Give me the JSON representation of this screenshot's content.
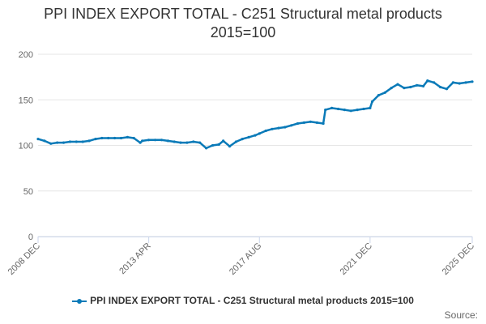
{
  "chart_data": {
    "type": "line",
    "title_lines": [
      "PPI INDEX EXPORT TOTAL - C251 Structural metal products",
      "2015=100"
    ],
    "xlabel": "",
    "ylabel": "",
    "ylim": [
      0,
      200
    ],
    "yticks": [
      0,
      50,
      100,
      150,
      200
    ],
    "xlim": [
      "2008 DEC",
      "2025 DEC"
    ],
    "xticks": [
      "2008 DEC",
      "2013 APR",
      "2017 AUG",
      "2021 DEC",
      "2025 DEC"
    ],
    "grid": "horizontal",
    "legend_position": "bottom-center",
    "color": "#0a7ab8",
    "series": [
      {
        "name": "PPI INDEX EXPORT TOTAL - C251 Structural metal products 2015=100",
        "x": [
          "2008-12",
          "2009-03",
          "2009-06",
          "2009-09",
          "2009-12",
          "2010-03",
          "2010-06",
          "2010-09",
          "2010-12",
          "2011-03",
          "2011-06",
          "2011-09",
          "2011-12",
          "2012-03",
          "2012-06",
          "2012-09",
          "2012-12",
          "2013-01",
          "2013-04",
          "2013-07",
          "2013-10",
          "2014-01",
          "2014-04",
          "2014-07",
          "2014-10",
          "2015-01",
          "2015-04",
          "2015-07",
          "2015-10",
          "2016-01",
          "2016-03",
          "2016-06",
          "2016-09",
          "2016-12",
          "2017-03",
          "2017-06",
          "2017-08",
          "2017-11",
          "2018-02",
          "2018-05",
          "2018-08",
          "2018-11",
          "2019-02",
          "2019-05",
          "2019-08",
          "2019-11",
          "2020-02",
          "2020-03",
          "2020-06",
          "2020-09",
          "2020-12",
          "2021-03",
          "2021-06",
          "2021-09",
          "2021-12",
          "2022-01",
          "2022-04",
          "2022-07",
          "2022-10",
          "2023-01",
          "2023-04",
          "2023-07",
          "2023-10",
          "2024-01",
          "2024-03",
          "2024-06",
          "2024-09",
          "2024-12",
          "2025-03",
          "2025-06",
          "2025-09",
          "2025-12"
        ],
        "values": [
          107,
          105,
          102,
          103,
          103,
          104,
          104,
          104,
          105,
          107,
          108,
          108,
          108,
          108,
          109,
          108,
          103,
          105,
          106,
          106,
          106,
          105,
          104,
          103,
          103,
          104,
          103,
          97,
          100,
          101,
          105,
          99,
          104,
          107,
          109,
          111,
          113,
          116,
          118,
          119,
          120,
          122,
          124,
          125,
          126,
          125,
          124,
          139,
          141,
          140,
          139,
          138,
          139,
          140,
          141,
          148,
          155,
          158,
          163,
          167,
          163,
          164,
          166,
          165,
          171,
          169,
          164,
          162,
          169,
          168,
          169,
          170
        ]
      }
    ]
  },
  "credits": "Source:"
}
